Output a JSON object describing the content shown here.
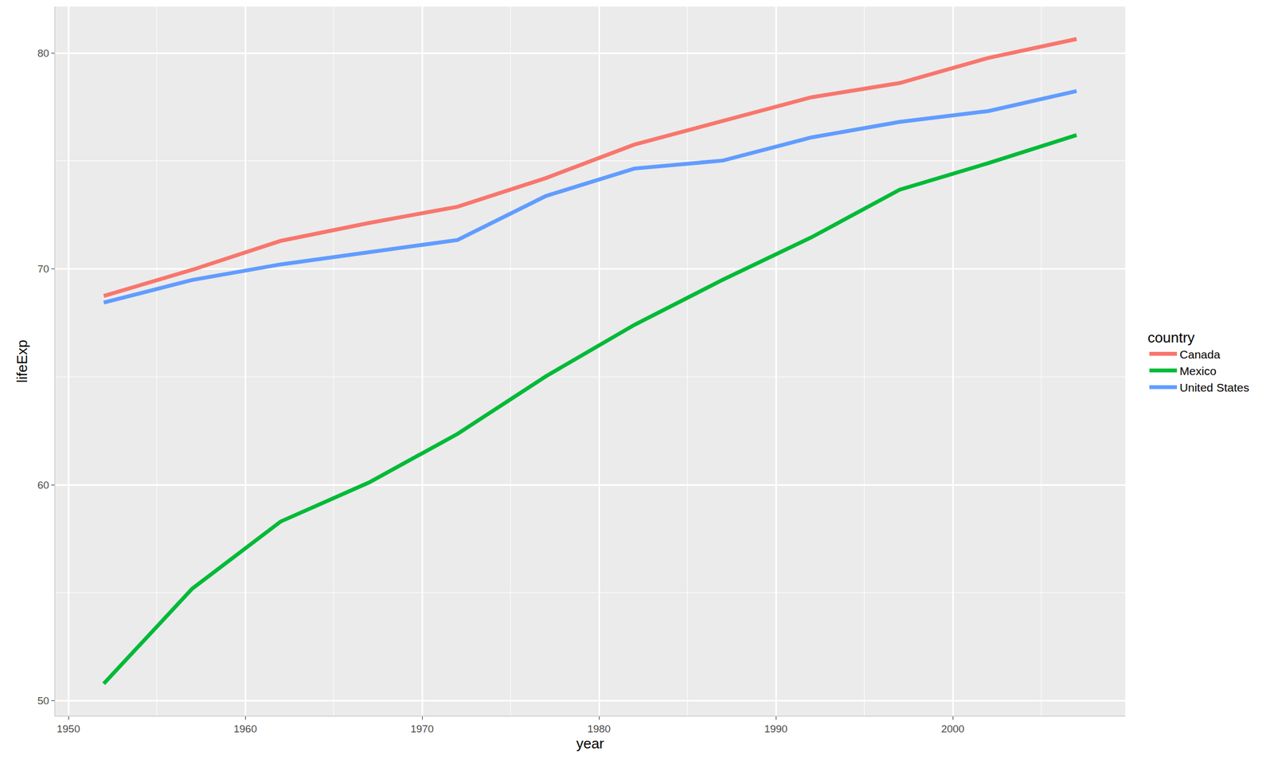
{
  "chart_data": {
    "type": "line",
    "x_label": "year",
    "y_label": "lifeExp",
    "legend_title": "country",
    "x": [
      1952,
      1957,
      1962,
      1967,
      1972,
      1977,
      1982,
      1987,
      1992,
      1997,
      2002,
      2007
    ],
    "series": [
      {
        "name": "Canada",
        "color": "#F8766D",
        "values": [
          68.75,
          69.96,
          71.3,
          72.13,
          72.88,
          74.21,
          75.76,
          76.86,
          77.95,
          78.61,
          79.77,
          80.65
        ]
      },
      {
        "name": "Mexico",
        "color": "#00BA38",
        "values": [
          50.79,
          55.19,
          58.3,
          60.11,
          62.36,
          65.03,
          67.41,
          69.5,
          71.46,
          73.67,
          74.9,
          76.2
        ]
      },
      {
        "name": "United States",
        "color": "#619CFF",
        "values": [
          68.44,
          69.49,
          70.21,
          70.76,
          71.34,
          73.38,
          74.65,
          75.02,
          76.09,
          76.81,
          77.31,
          78.24
        ]
      }
    ],
    "xlim": [
      1949.25,
      2009.75
    ],
    "xticks": [
      1950,
      1960,
      1970,
      1980,
      1990,
      2000
    ],
    "ylim": [
      49.3,
      82.15
    ],
    "yticks": [
      50,
      60,
      70,
      80
    ],
    "grid": true,
    "legend": "right"
  }
}
